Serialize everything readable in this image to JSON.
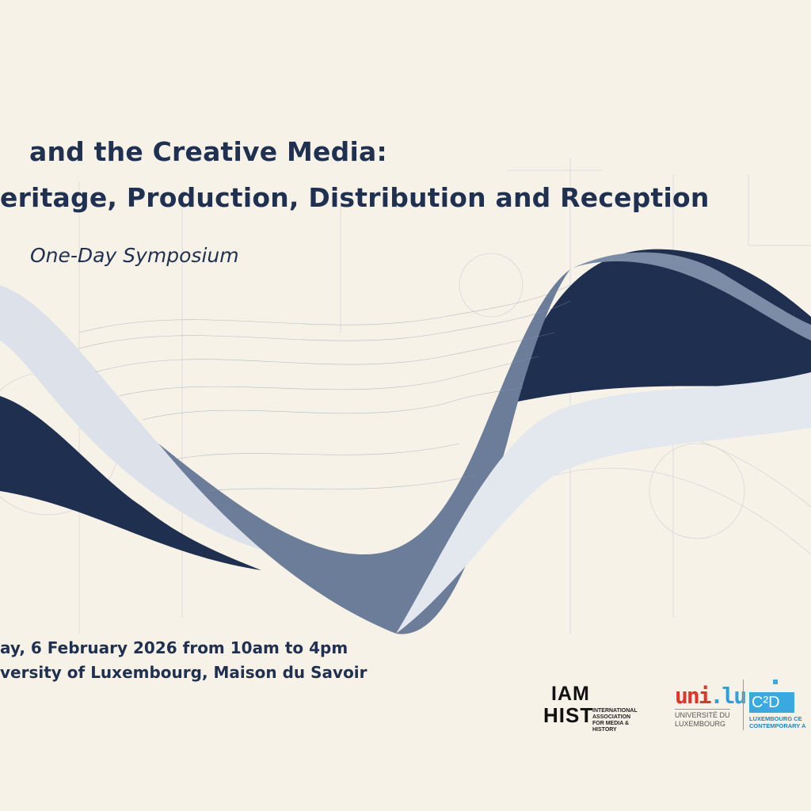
{
  "title": {
    "line1": "and the Creative Media:",
    "line2": "eritage, Production, Distribution and Reception"
  },
  "subtitle": "One-Day Symposium",
  "event": {
    "date_line": "ay, 6 February 2026 from 10am to 4pm",
    "venue_line": "versity of Luxembourg, Maison du Savoir"
  },
  "logos": {
    "iamhist": {
      "mark": "IAMHIST",
      "text_lines": [
        "INTERNATIONAL",
        "ASSOCIATION",
        "FOR MEDIA & HISTORY"
      ]
    },
    "unilu": {
      "mark": "uni.lu",
      "text_lines": [
        "UNIVERSITÉ DU",
        "LUXEMBOURG"
      ]
    },
    "c2dh": {
      "mark": "C²D",
      "text_lines": [
        "LUXEMBOURG CE",
        "CONTEMPORARY A"
      ]
    }
  },
  "colors": {
    "background": "#f7f2e8",
    "text": "#1f3050",
    "wave_dark": "#1f2f4f",
    "wave_mid": "#6b7d99",
    "unilu_red": "#e4322b",
    "unilu_blue": "#2aa3dc",
    "c2dh_blue": "#3aa9e0"
  }
}
